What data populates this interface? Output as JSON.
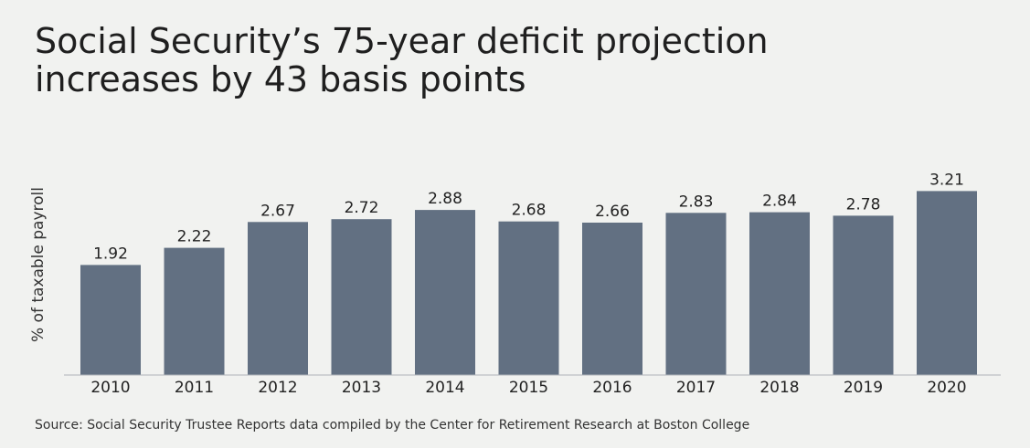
{
  "colors": {
    "background": "#f1f2f0",
    "bar": "#627082",
    "axis": "#aeb3b8",
    "text": "#222222"
  },
  "chart_data": {
    "type": "bar",
    "title_lines": [
      "Social Security’s 75-year deficit projection",
      "increases by 43 basis points"
    ],
    "xlabel": "",
    "ylabel": "% of taxable payroll",
    "categories": [
      "2010",
      "2011",
      "2012",
      "2013",
      "2014",
      "2015",
      "2016",
      "2017",
      "2018",
      "2019",
      "2020"
    ],
    "values": [
      1.92,
      2.22,
      2.67,
      2.72,
      2.88,
      2.68,
      2.66,
      2.83,
      2.84,
      2.78,
      3.21
    ],
    "value_labels": [
      "1.92",
      "2.22",
      "2.67",
      "2.72",
      "2.88",
      "2.68",
      "2.66",
      "2.83",
      "2.84",
      "2.78",
      "3.21"
    ],
    "ylim": [
      0,
      4
    ],
    "grid": false,
    "legend": "none",
    "source": "Source: Social Security Trustee Reports data compiled by the Center for Retirement Research at Boston College"
  }
}
